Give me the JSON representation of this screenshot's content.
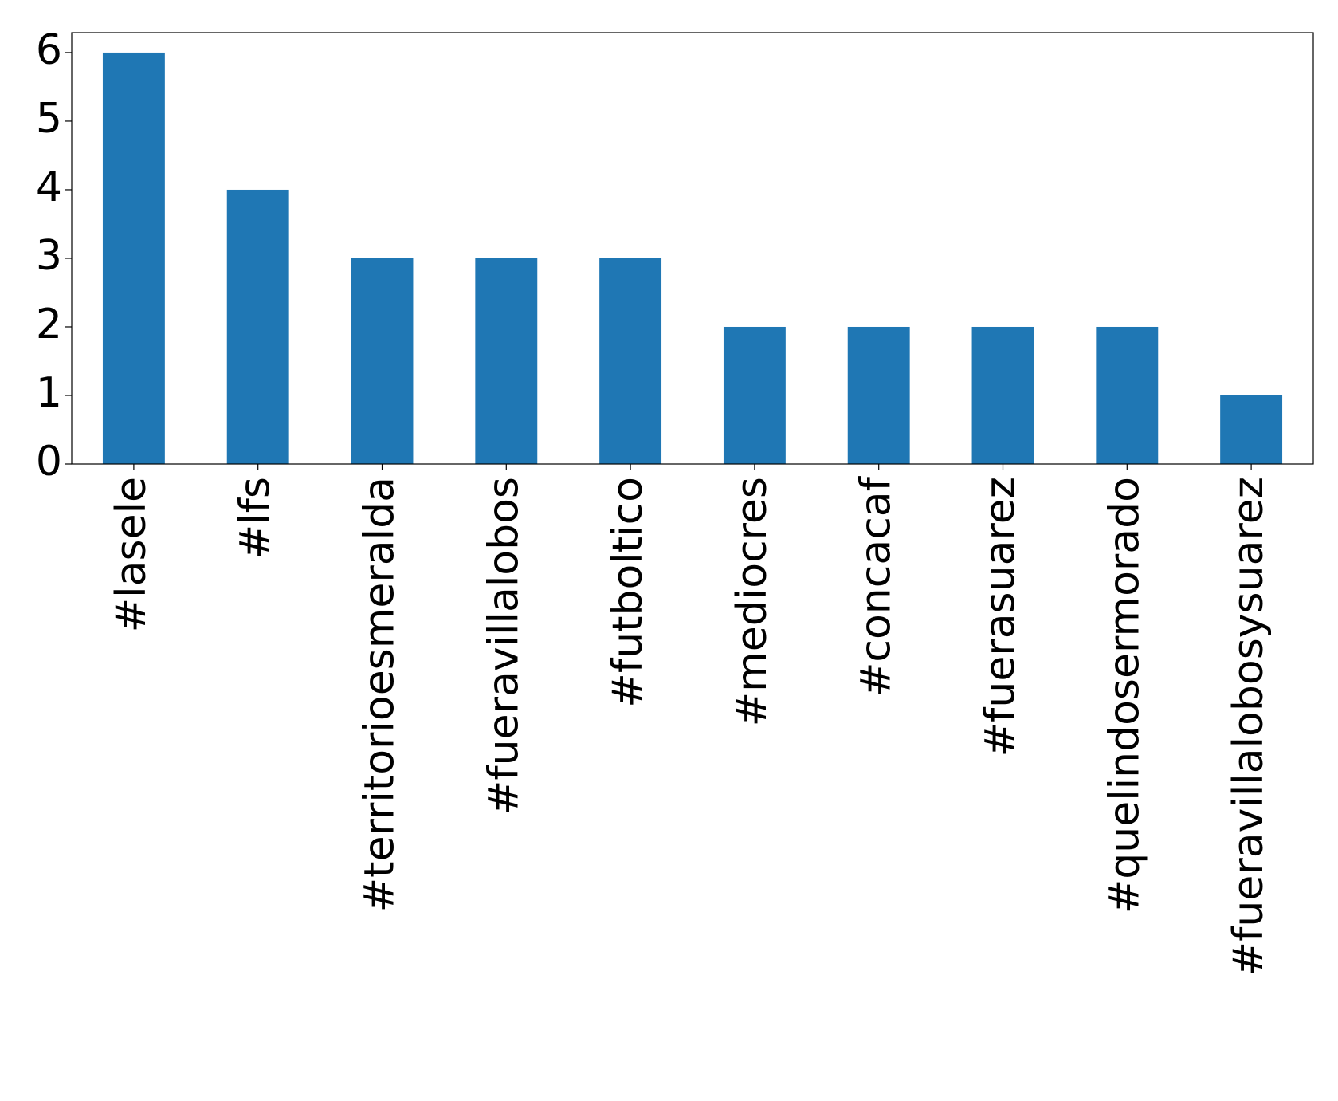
{
  "chart_data": {
    "type": "bar",
    "categories": [
      "#lasele",
      "#lfs",
      "#territorioesmeralda",
      "#fueravillalobos",
      "#futboltico",
      "#mediocres",
      "#concacaf",
      "#fuerasuarez",
      "#quelindosermorado",
      "#fueravillalobosysuarez"
    ],
    "values": [
      6,
      4,
      3,
      3,
      3,
      2,
      2,
      2,
      2,
      1
    ],
    "color": "#1f77b4",
    "ylim": [
      0,
      6.29
    ],
    "yticks": [
      0,
      1,
      2,
      3,
      4,
      5,
      6
    ],
    "grid": false
  }
}
